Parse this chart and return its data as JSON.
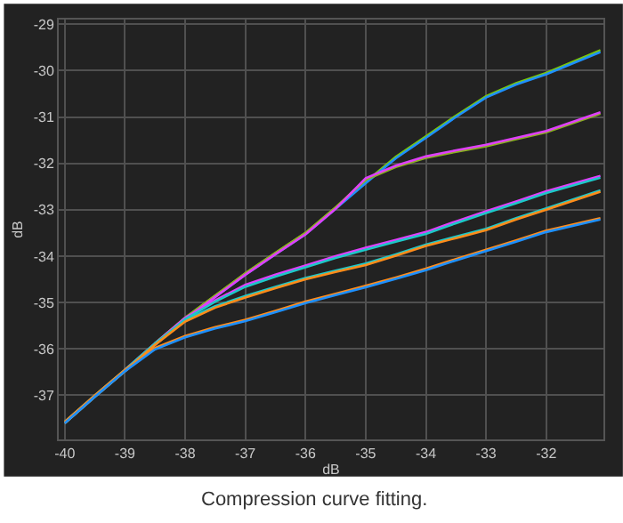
{
  "chart_data": {
    "type": "line",
    "xlabel": "dB",
    "ylabel": "dB",
    "annotations": [
      "Compression curve fitting."
    ],
    "xlim": [
      -40.1,
      -31.05
    ],
    "ylim": [
      -37.95,
      -28.9
    ],
    "xticks": [
      -40,
      -39,
      -38,
      -37,
      -36,
      -35,
      -34,
      -33,
      -32
    ],
    "yticks": [
      -37,
      -36,
      -35,
      -34,
      -33,
      -32,
      -31,
      -30,
      -29
    ],
    "grid": true,
    "marker": "none",
    "line_style": "solid",
    "x": [
      -40,
      -39.5,
      -39,
      -38.5,
      -38,
      -37.5,
      -37,
      -36.5,
      -36,
      -35.5,
      -35,
      -34.5,
      -34,
      -33.5,
      -33,
      -32.5,
      -32,
      -31.1
    ],
    "series": [
      {
        "color": "#7ac70c",
        "values": [
          null,
          null,
          null,
          -35.88,
          -35.33,
          -34.85,
          -34.37,
          -33.93,
          -33.5,
          -32.95,
          -32.4,
          -31.86,
          -31.42,
          -30.97,
          -30.55,
          -30.27,
          -30.05,
          -29.56
        ]
      },
      {
        "color": "#1e90ff",
        "values": [
          -37.6,
          -37.03,
          -36.48,
          -35.91,
          -35.36,
          -34.88,
          -34.4,
          -33.96,
          -33.53,
          -32.98,
          -32.43,
          -31.89,
          -31.45,
          -31.0,
          -30.58,
          -30.3,
          -30.08,
          -29.6
        ]
      },
      {
        "color": "#8ab020",
        "values": [
          null,
          null,
          null,
          -35.88,
          -35.33,
          -34.85,
          -34.37,
          -33.93,
          -33.5,
          -32.95,
          -32.35,
          -32.08,
          -31.88,
          -31.75,
          -31.63,
          -31.48,
          -31.33,
          -30.93
        ]
      },
      {
        "color": "#e040fb",
        "values": [
          null,
          null,
          -36.48,
          -35.91,
          -35.36,
          -34.88,
          -34.4,
          -33.96,
          -33.53,
          -32.98,
          -32.32,
          -32.05,
          -31.85,
          -31.72,
          -31.6,
          -31.45,
          -31.3,
          -30.9
        ]
      },
      {
        "color": "#e040fb",
        "values": [
          null,
          null,
          -36.45,
          -35.88,
          -35.33,
          -34.95,
          -34.62,
          -34.4,
          -34.2,
          -34.0,
          -33.82,
          -33.65,
          -33.48,
          -33.25,
          -33.03,
          -32.82,
          -32.6,
          -32.27
        ]
      },
      {
        "color": "#1ec8c8",
        "values": [
          -37.6,
          -37.03,
          -36.48,
          -35.91,
          -35.36,
          -34.98,
          -34.66,
          -34.44,
          -34.24,
          -34.04,
          -33.86,
          -33.69,
          -33.52,
          -33.29,
          -33.07,
          -32.86,
          -32.64,
          -32.31
        ]
      },
      {
        "color": "#1ec8c8",
        "values": [
          -37.57,
          -37.0,
          -36.45,
          -35.88,
          -35.38,
          -35.08,
          -34.86,
          -34.66,
          -34.47,
          -34.31,
          -34.16,
          -33.96,
          -33.75,
          -33.58,
          -33.41,
          -33.18,
          -32.97,
          -32.58
        ]
      },
      {
        "color": "#ff8c1a",
        "values": [
          -37.6,
          -37.03,
          -36.48,
          -35.91,
          -35.41,
          -35.11,
          -34.89,
          -34.69,
          -34.5,
          -34.34,
          -34.19,
          -33.99,
          -33.78,
          -33.61,
          -33.44,
          -33.21,
          -33.0,
          -32.61
        ]
      },
      {
        "color": "#ff8c1a",
        "values": [
          -37.57,
          -37.0,
          -36.45,
          -35.98,
          -35.72,
          -35.53,
          -35.37,
          -35.18,
          -34.98,
          -34.81,
          -34.64,
          -34.46,
          -34.27,
          -34.06,
          -33.86,
          -33.66,
          -33.45,
          -33.18
        ]
      },
      {
        "color": "#1e90ff",
        "values": [
          -37.6,
          -37.03,
          -36.48,
          -36.01,
          -35.75,
          -35.56,
          -35.4,
          -35.21,
          -35.01,
          -34.84,
          -34.67,
          -34.49,
          -34.3,
          -34.09,
          -33.89,
          -33.69,
          -33.48,
          -33.21
        ]
      }
    ]
  }
}
